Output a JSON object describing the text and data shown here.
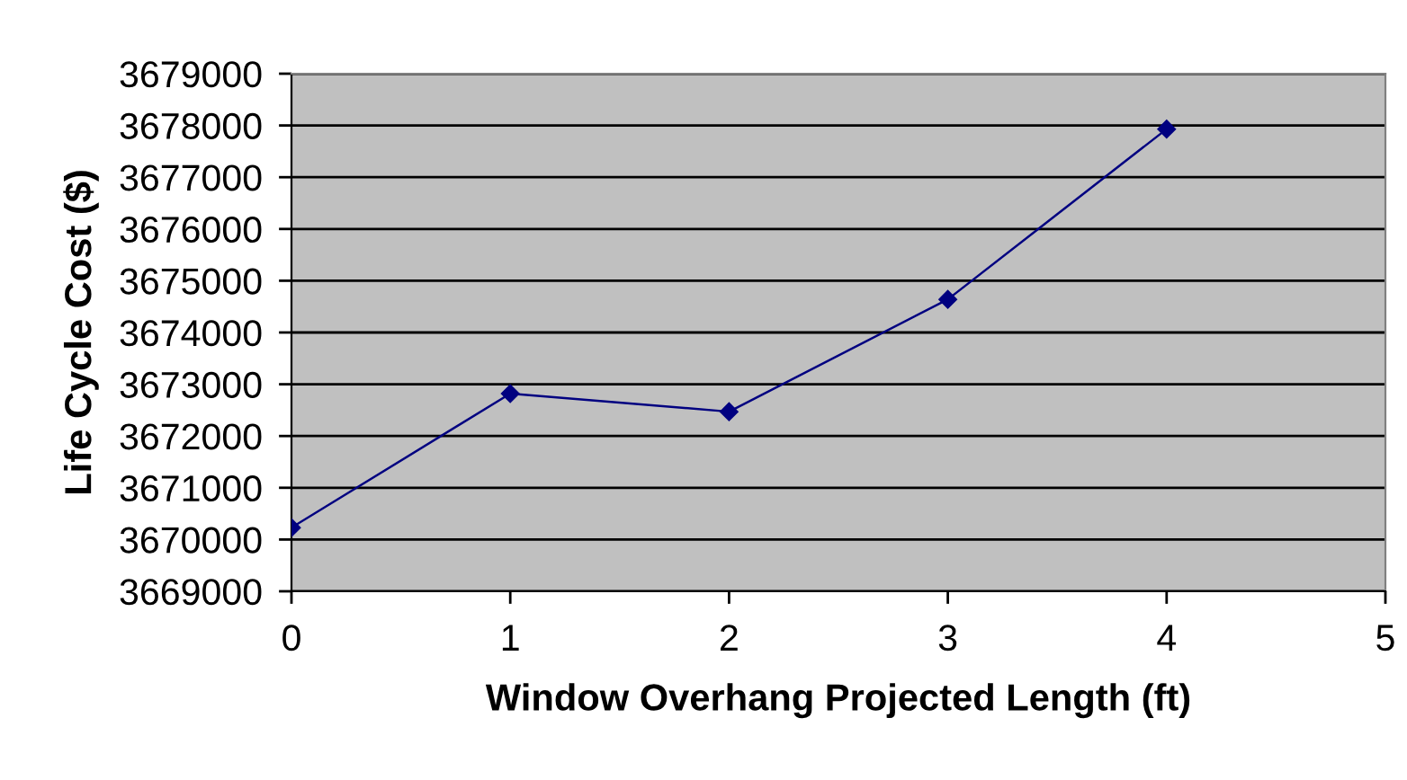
{
  "chart_data": {
    "type": "line",
    "xlabel": "Window Overhang Projected Length (ft)",
    "ylabel": "Life Cycle Cost ($)",
    "x": [
      0,
      1,
      2,
      3,
      4
    ],
    "series": [
      {
        "color": "#000080",
        "values": [
          3670230,
          3672820,
          3672470,
          3674640,
          3677930
        ]
      }
    ],
    "xlim": [
      0,
      5
    ],
    "xticks": [
      0,
      1,
      2,
      3,
      4,
      5
    ],
    "ylim": [
      3669000,
      3679000
    ],
    "yticks": [
      3669000,
      3670000,
      3671000,
      3672000,
      3673000,
      3674000,
      3675000,
      3676000,
      3677000,
      3678000,
      3679000
    ],
    "grid": "y",
    "marker": "diamond",
    "line_style": "solid"
  }
}
